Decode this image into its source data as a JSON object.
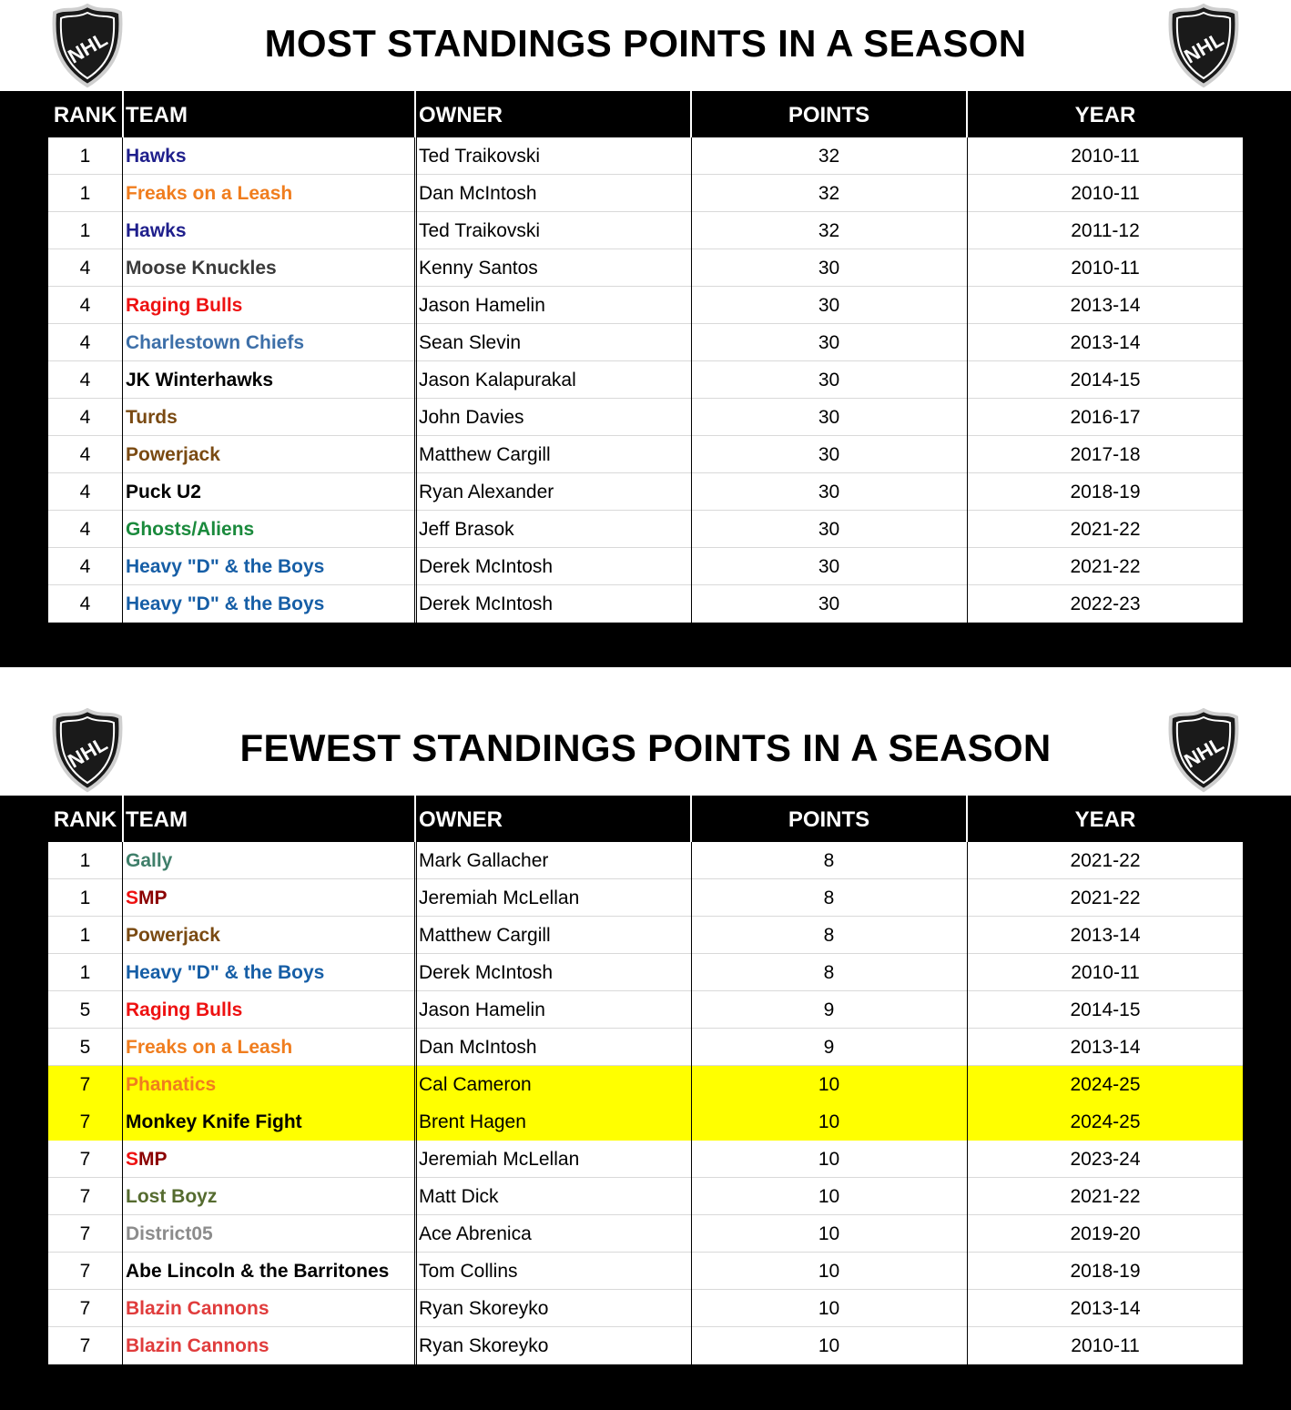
{
  "most": {
    "title": "MOST STANDINGS POINTS IN A SEASON",
    "headers": {
      "rank": "RANK",
      "team": "TEAM",
      "owner": "OWNER",
      "points": "POINTS",
      "year": "YEAR"
    },
    "rows": [
      {
        "rank": "1",
        "team": "Hawks",
        "team_color": "#1f1f8c",
        "owner": "Ted Traikovski",
        "points": "32",
        "year": "2010-11"
      },
      {
        "rank": "1",
        "team": "Freaks on a Leash",
        "team_color": "#f07d1e",
        "owner": "Dan McIntosh",
        "points": "32",
        "year": "2010-11"
      },
      {
        "rank": "1",
        "team": "Hawks",
        "team_color": "#1f1f8c",
        "owner": "Ted Traikovski",
        "points": "32",
        "year": "2011-12"
      },
      {
        "rank": "4",
        "team": "Moose Knuckles",
        "team_color": "#3a3a3a",
        "owner": "Kenny Santos",
        "points": "30",
        "year": "2010-11"
      },
      {
        "rank": "4",
        "team": "Raging Bulls",
        "team_color": "#ee1111",
        "owner": "Jason Hamelin",
        "points": "30",
        "year": "2013-14"
      },
      {
        "rank": "4",
        "team": "Charlestown Chiefs",
        "team_color": "#3d6fa8",
        "owner": "Sean Slevin",
        "points": "30",
        "year": "2013-14"
      },
      {
        "rank": "4",
        "team": "JK Winterhawks",
        "team_color": "#000000",
        "owner": "Jason Kalapurakal",
        "points": "30",
        "year": "2014-15"
      },
      {
        "rank": "4",
        "team": "Turds",
        "team_color": "#7a4a12",
        "owner": "John Davies",
        "points": "30",
        "year": "2016-17"
      },
      {
        "rank": "4",
        "team": "Powerjack",
        "team_color": "#7a4a12",
        "owner": "Matthew Cargill",
        "points": "30",
        "year": "2017-18"
      },
      {
        "rank": "4",
        "team": "Puck U2",
        "team_color": "#000000",
        "owner": "Ryan Alexander",
        "points": "30",
        "year": "2018-19"
      },
      {
        "rank": "4",
        "team": "Ghosts/Aliens",
        "team_color": "#1a8a3c",
        "owner": "Jeff Brasok",
        "points": "30",
        "year": "2021-22"
      },
      {
        "rank": "4",
        "team": "Heavy \"D\" & the Boys",
        "team_color": "#165ea6",
        "owner": "Derek McIntosh",
        "points": "30",
        "year": "2021-22"
      },
      {
        "rank": "4",
        "team": "Heavy \"D\" & the Boys",
        "team_color": "#165ea6",
        "owner": "Derek McIntosh",
        "points": "30",
        "year": "2022-23"
      }
    ]
  },
  "fewest": {
    "title": "FEWEST STANDINGS POINTS IN A SEASON",
    "headers": {
      "rank": "RANK",
      "team": "TEAM",
      "owner": "OWNER",
      "points": "POINTS",
      "year": "YEAR"
    },
    "rows": [
      {
        "rank": "1",
        "team": "Gally",
        "team_color": "#3f7f6a",
        "owner": "Mark Gallacher",
        "points": "8",
        "year": "2021-22"
      },
      {
        "rank": "1",
        "team_a": "S",
        "team_b": "MP",
        "team_color": "#ee1111",
        "owner": "Jeremiah McLellan",
        "points": "8",
        "year": "2021-22"
      },
      {
        "rank": "1",
        "team": "Powerjack",
        "team_color": "#7a4a12",
        "owner": "Matthew Cargill",
        "points": "8",
        "year": "2013-14"
      },
      {
        "rank": "1",
        "team": "Heavy \"D\" & the Boys",
        "team_color": "#165ea6",
        "owner": "Derek McIntosh",
        "points": "8",
        "year": "2010-11"
      },
      {
        "rank": "5",
        "team": "Raging Bulls",
        "team_color": "#ee1111",
        "owner": "Jason Hamelin",
        "points": "9",
        "year": "2014-15"
      },
      {
        "rank": "5",
        "team": "Freaks on a Leash",
        "team_color": "#f07d1e",
        "owner": "Dan McIntosh",
        "points": "9",
        "year": "2013-14"
      },
      {
        "rank": "7",
        "team": "Phanatics",
        "team_color": "#f07d1e",
        "owner": "Cal Cameron",
        "points": "10",
        "year": "2024-25",
        "highlight": true
      },
      {
        "rank": "7",
        "team": "Monkey Knife Fight",
        "team_color": "#000000",
        "owner": "Brent Hagen",
        "points": "10",
        "year": "2024-25",
        "highlight": true
      },
      {
        "rank": "7",
        "team_a": "S",
        "team_b": "MP",
        "team_color": "#ee1111",
        "owner": "Jeremiah McLellan",
        "points": "10",
        "year": "2023-24"
      },
      {
        "rank": "7",
        "team": "Lost Boyz",
        "team_color": "#556b2f",
        "owner": "Matt Dick",
        "points": "10",
        "year": "2021-22"
      },
      {
        "rank": "7",
        "team": "District05",
        "team_color": "#8c8c8c",
        "owner": "Ace Abrenica",
        "points": "10",
        "year": "2019-20"
      },
      {
        "rank": "7",
        "team": "Abe Lincoln & the Barritones",
        "team_color": "#000000",
        "owner": "Tom Collins",
        "points": "10",
        "year": "2018-19"
      },
      {
        "rank": "7",
        "team": "Blazin Cannons",
        "team_color": "#e03c3c",
        "owner": "Ryan Skoreyko",
        "points": "10",
        "year": "2013-14"
      },
      {
        "rank": "7",
        "team": "Blazin Cannons",
        "team_color": "#e03c3c",
        "owner": "Ryan Skoreyko",
        "points": "10",
        "year": "2010-11"
      }
    ]
  },
  "logo": {
    "text": "NHL",
    "icon": "nhl-shield-logo"
  },
  "colors": {
    "header_bg": "#000000",
    "highlight": "#ffff00",
    "smp_m_p": "#8b0000"
  }
}
